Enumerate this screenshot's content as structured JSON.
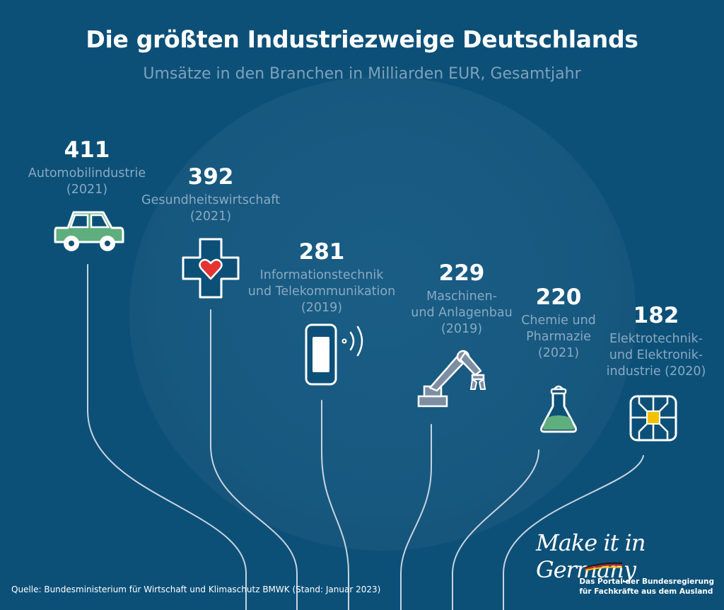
{
  "header": {
    "title": "Die größten Industriezweige Deutschlands",
    "subtitle": "Umsätze in den Branchen in Milliarden EUR, Gesamtjahr"
  },
  "chart_data": {
    "type": "bar",
    "title": "Die größten Industriezweige Deutschlands",
    "subtitle": "Umsätze in den Branchen in Milliarden EUR, Gesamtjahr",
    "categories": [
      "Automobilindustrie (2021)",
      "Gesundheitswirtschaft (2021)",
      "Informationstechnik und Telekommunikation (2019)",
      "Maschinen- und Anlagenbau (2019)",
      "Chemie und Pharmazie (2021)",
      "Elektrotechnik- und Elektronikindustrie (2020)"
    ],
    "values": [
      411,
      392,
      281,
      229,
      220,
      182
    ],
    "items": [
      {
        "value": "411",
        "label": "Automobilindustrie\n(2021)",
        "icon": "car-icon"
      },
      {
        "value": "392",
        "label": "Gesundheitswirtschaft\n(2021)",
        "icon": "health-cross-icon"
      },
      {
        "value": "281",
        "label": "Informationstechnik\nund Telekommunikation\n(2019)",
        "icon": "smartphone-icon"
      },
      {
        "value": "229",
        "label": "Maschinen-\nund Anlagenbau\n(2019)",
        "icon": "robot-arm-icon"
      },
      {
        "value": "220",
        "label": "Chemie und\nPharmazie\n(2021)",
        "icon": "flask-icon"
      },
      {
        "value": "182",
        "label": "Elektrotechnik-\nund Elektronik-\nindustrie (2020)",
        "icon": "chip-icon"
      }
    ]
  },
  "footer": {
    "source": "Quelle: Bundesministerium für Wirtschaft und Klimaschutz BMWK (Stand: Januar 2023)",
    "logo_script": "Make it in Germany",
    "logo_caption_1": "Das Portal der Bundesregierung",
    "logo_caption_2": "für Fachkräfte aus dem Ausland"
  },
  "colors": {
    "background": "#0c5078",
    "globe": "#17587f",
    "subtitle": "#7fa1ba",
    "label": "#8aa9c0",
    "car": "#5fae7d",
    "heart": "#e53333",
    "chip": "#f2c200",
    "flask_liquid": "#5fae7d",
    "line": "#c8d4de"
  }
}
